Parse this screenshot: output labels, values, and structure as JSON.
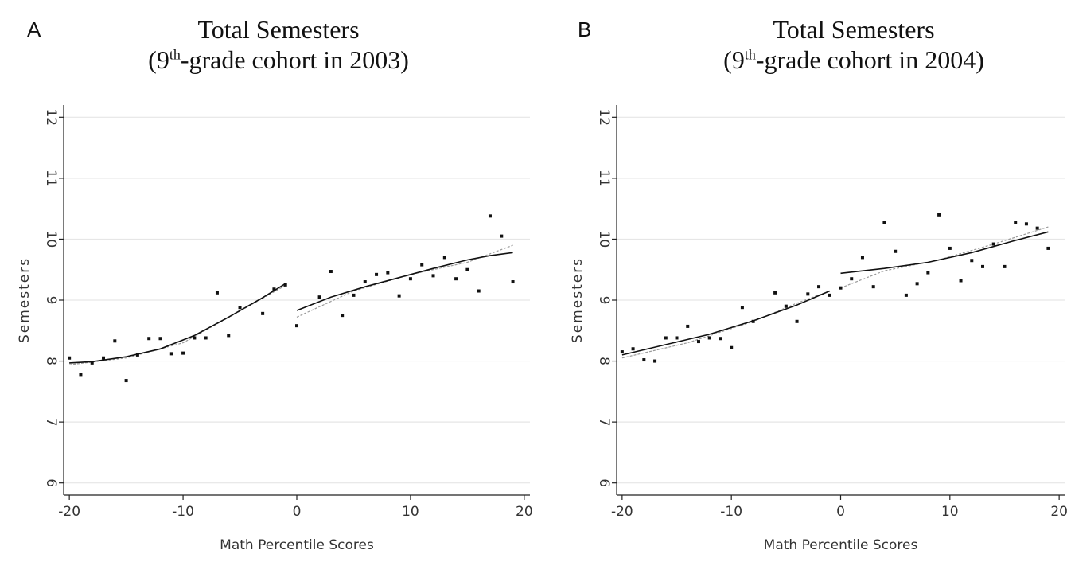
{
  "panels": [
    {
      "letter": "A",
      "title_line1": "Total Semesters",
      "title_line2_pre": "(9",
      "title_line2_sup": "th",
      "title_line2_post": "-grade cohort in 2003)"
    },
    {
      "letter": "B",
      "title_line1": "Total Semesters",
      "title_line2_pre": "(9",
      "title_line2_sup": "th",
      "title_line2_post": "-grade cohort in 2004)"
    }
  ],
  "chart_data": [
    {
      "type": "scatter",
      "title": "Total Semesters (9th-grade cohort in 2003)",
      "xlabel": "Math Percentile Scores",
      "ylabel": "Semesters",
      "xlim": [
        -20.5,
        20.5
      ],
      "ylim": [
        5.8,
        12.2
      ],
      "xticks": [
        -20,
        -10,
        0,
        10,
        20
      ],
      "yticks": [
        6,
        7,
        8,
        9,
        10,
        11,
        12
      ],
      "grid": true,
      "points": [
        {
          "x": -20,
          "y": 8.05
        },
        {
          "x": -19,
          "y": 7.78
        },
        {
          "x": -18,
          "y": 7.97
        },
        {
          "x": -17,
          "y": 8.05
        },
        {
          "x": -16,
          "y": 8.33
        },
        {
          "x": -15,
          "y": 7.68
        },
        {
          "x": -14,
          "y": 8.1
        },
        {
          "x": -13,
          "y": 8.37
        },
        {
          "x": -12,
          "y": 8.37
        },
        {
          "x": -11,
          "y": 8.12
        },
        {
          "x": -10,
          "y": 8.13
        },
        {
          "x": -9,
          "y": 8.38
        },
        {
          "x": -8,
          "y": 8.38
        },
        {
          "x": -7,
          "y": 9.12
        },
        {
          "x": -6,
          "y": 8.42
        },
        {
          "x": -5,
          "y": 8.88
        },
        {
          "x": -3,
          "y": 8.78
        },
        {
          "x": -2,
          "y": 9.18
        },
        {
          "x": -1,
          "y": 9.25
        },
        {
          "x": 0,
          "y": 8.58
        },
        {
          "x": 2,
          "y": 9.05
        },
        {
          "x": 3,
          "y": 9.47
        },
        {
          "x": 4,
          "y": 8.75
        },
        {
          "x": 5,
          "y": 9.08
        },
        {
          "x": 6,
          "y": 9.3
        },
        {
          "x": 7,
          "y": 9.42
        },
        {
          "x": 8,
          "y": 9.45
        },
        {
          "x": 9,
          "y": 9.07
        },
        {
          "x": 10,
          "y": 9.35
        },
        {
          "x": 11,
          "y": 9.58
        },
        {
          "x": 12,
          "y": 9.4
        },
        {
          "x": 13,
          "y": 9.7
        },
        {
          "x": 14,
          "y": 9.35
        },
        {
          "x": 15,
          "y": 9.5
        },
        {
          "x": 16,
          "y": 9.15
        },
        {
          "x": 17,
          "y": 10.38
        },
        {
          "x": 18,
          "y": 10.05
        },
        {
          "x": 19,
          "y": 9.3
        }
      ],
      "fit_left": [
        {
          "x": -20,
          "y": 7.97
        },
        {
          "x": -18,
          "y": 7.99
        },
        {
          "x": -15,
          "y": 8.07
        },
        {
          "x": -12,
          "y": 8.2
        },
        {
          "x": -9,
          "y": 8.42
        },
        {
          "x": -6,
          "y": 8.72
        },
        {
          "x": -3,
          "y": 9.04
        },
        {
          "x": -1,
          "y": 9.27
        }
      ],
      "fit_right": [
        {
          "x": 0,
          "y": 8.83
        },
        {
          "x": 3,
          "y": 9.05
        },
        {
          "x": 6,
          "y": 9.22
        },
        {
          "x": 9,
          "y": 9.37
        },
        {
          "x": 12,
          "y": 9.52
        },
        {
          "x": 15,
          "y": 9.66
        },
        {
          "x": 17,
          "y": 9.73
        },
        {
          "x": 19,
          "y": 9.78
        }
      ],
      "fit2_left": [
        {
          "x": -20,
          "y": 7.94
        },
        {
          "x": -15,
          "y": 8.05
        },
        {
          "x": -10,
          "y": 8.3
        },
        {
          "x": -5,
          "y": 8.82
        },
        {
          "x": -1,
          "y": 9.24
        }
      ],
      "fit2_right": [
        {
          "x": 0,
          "y": 8.72
        },
        {
          "x": 5,
          "y": 9.15
        },
        {
          "x": 10,
          "y": 9.42
        },
        {
          "x": 15,
          "y": 9.62
        },
        {
          "x": 19,
          "y": 9.9
        }
      ]
    },
    {
      "type": "scatter",
      "title": "Total Semesters (9th-grade cohort in 2004)",
      "xlabel": "Math Percentile Scores",
      "ylabel": "Semesters",
      "xlim": [
        -20.5,
        20.5
      ],
      "ylim": [
        5.8,
        12.2
      ],
      "xticks": [
        -20,
        -10,
        0,
        10,
        20
      ],
      "yticks": [
        6,
        7,
        8,
        9,
        10,
        11,
        12
      ],
      "grid": true,
      "points": [
        {
          "x": -20,
          "y": 8.15
        },
        {
          "x": -19,
          "y": 8.2
        },
        {
          "x": -18,
          "y": 8.02
        },
        {
          "x": -17,
          "y": 8.0
        },
        {
          "x": -16,
          "y": 8.38
        },
        {
          "x": -15,
          "y": 8.38
        },
        {
          "x": -14,
          "y": 8.57
        },
        {
          "x": -13,
          "y": 8.32
        },
        {
          "x": -12,
          "y": 8.38
        },
        {
          "x": -11,
          "y": 8.37
        },
        {
          "x": -10,
          "y": 8.22
        },
        {
          "x": -9,
          "y": 8.88
        },
        {
          "x": -8,
          "y": 8.65
        },
        {
          "x": -6,
          "y": 9.12
        },
        {
          "x": -5,
          "y": 8.9
        },
        {
          "x": -4,
          "y": 8.65
        },
        {
          "x": -3,
          "y": 9.1
        },
        {
          "x": -2,
          "y": 9.22
        },
        {
          "x": -1,
          "y": 9.08
        },
        {
          "x": 0,
          "y": 9.2
        },
        {
          "x": 1,
          "y": 9.35
        },
        {
          "x": 2,
          "y": 9.7
        },
        {
          "x": 3,
          "y": 9.22
        },
        {
          "x": 4,
          "y": 10.28
        },
        {
          "x": 5,
          "y": 9.8
        },
        {
          "x": 6,
          "y": 9.08
        },
        {
          "x": 7,
          "y": 9.27
        },
        {
          "x": 8,
          "y": 9.45
        },
        {
          "x": 9,
          "y": 10.4
        },
        {
          "x": 10,
          "y": 9.85
        },
        {
          "x": 11,
          "y": 9.32
        },
        {
          "x": 12,
          "y": 9.65
        },
        {
          "x": 13,
          "y": 9.55
        },
        {
          "x": 14,
          "y": 9.92
        },
        {
          "x": 15,
          "y": 9.55
        },
        {
          "x": 16,
          "y": 10.28
        },
        {
          "x": 17,
          "y": 10.25
        },
        {
          "x": 18,
          "y": 10.18
        },
        {
          "x": 19,
          "y": 9.85
        }
      ],
      "fit_left": [
        {
          "x": -20,
          "y": 8.1
        },
        {
          "x": -16,
          "y": 8.27
        },
        {
          "x": -12,
          "y": 8.44
        },
        {
          "x": -8,
          "y": 8.66
        },
        {
          "x": -4,
          "y": 8.92
        },
        {
          "x": -1,
          "y": 9.15
        }
      ],
      "fit_right": [
        {
          "x": 0,
          "y": 9.44
        },
        {
          "x": 4,
          "y": 9.52
        },
        {
          "x": 8,
          "y": 9.62
        },
        {
          "x": 12,
          "y": 9.78
        },
        {
          "x": 16,
          "y": 9.98
        },
        {
          "x": 19,
          "y": 10.12
        }
      ],
      "fit2_left": [
        {
          "x": -20,
          "y": 8.05
        },
        {
          "x": -14,
          "y": 8.3
        },
        {
          "x": -8,
          "y": 8.65
        },
        {
          "x": -4,
          "y": 8.95
        },
        {
          "x": -1,
          "y": 9.15
        }
      ],
      "fit2_right": [
        {
          "x": 0,
          "y": 9.2
        },
        {
          "x": 4,
          "y": 9.48
        },
        {
          "x": 9,
          "y": 9.66
        },
        {
          "x": 14,
          "y": 9.92
        },
        {
          "x": 19,
          "y": 10.2
        }
      ]
    }
  ]
}
